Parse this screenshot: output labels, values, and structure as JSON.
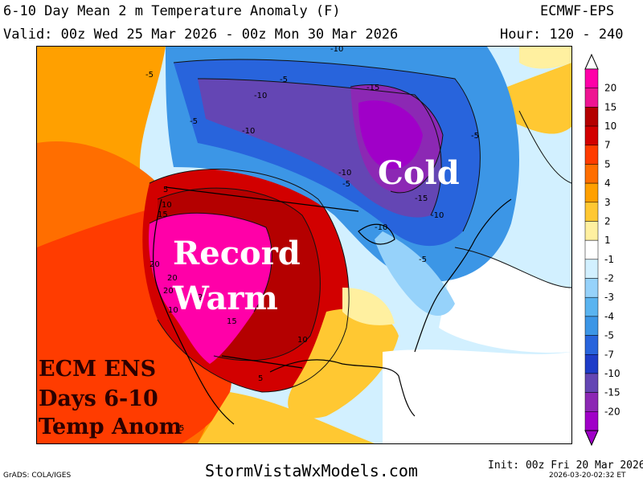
{
  "header": {
    "title": "6-10 Day Mean 2 m Temperature Anomaly (F)",
    "valid": "Valid: 00z Wed 25 Mar 2026 - 00z Mon 30 Mar 2026",
    "model": "ECMWF-EPS",
    "hour": "Hour: 120 - 240"
  },
  "overlay": {
    "cold": "Cold",
    "record": "Record",
    "warm": "Warm",
    "caption_line1": "ECM ENS",
    "caption_line2": "Days 6-10",
    "caption_line3": "Temp Anom"
  },
  "contour_labels": [
    "-10",
    "-5",
    "-10",
    "-5",
    "-10",
    "-5",
    "-15",
    "-5",
    "-10",
    "-5",
    "-10",
    "-15",
    "-10",
    "-5",
    "5",
    "10",
    "15",
    "20",
    "20",
    "20",
    "10",
    "15",
    "10",
    "5",
    "5",
    "2"
  ],
  "colorbar": {
    "levels": [
      "20",
      "15",
      "10",
      "7",
      "5",
      "4",
      "3",
      "2",
      "1",
      "-1",
      "-2",
      "-3",
      "-4",
      "-5",
      "-7",
      "-10",
      "-15",
      "-20"
    ],
    "colors": [
      "#ff00a8",
      "#ee1492",
      "#b40000",
      "#d20000",
      "#ff3c00",
      "#ff6e00",
      "#ffa000",
      "#ffc832",
      "#fff0a0",
      "#ffffff",
      "#d2f0ff",
      "#96d2fa",
      "#5ab4f0",
      "#3c96e6",
      "#2864dc",
      "#1e3cc8",
      "#6446b4",
      "#8c28b4",
      "#a000c8"
    ]
  },
  "footer": {
    "grads": "GrADS: COLA/IGES",
    "site": "StormVistaWxModels.com",
    "init": "Init: 00z Fri 20 Mar 2026",
    "timestamp": "2026-03-20-02:32 ET"
  },
  "colors": {
    "cold_text": "#ffffff",
    "warm_text": "#ffffff",
    "caption_text": "#2b0000"
  }
}
